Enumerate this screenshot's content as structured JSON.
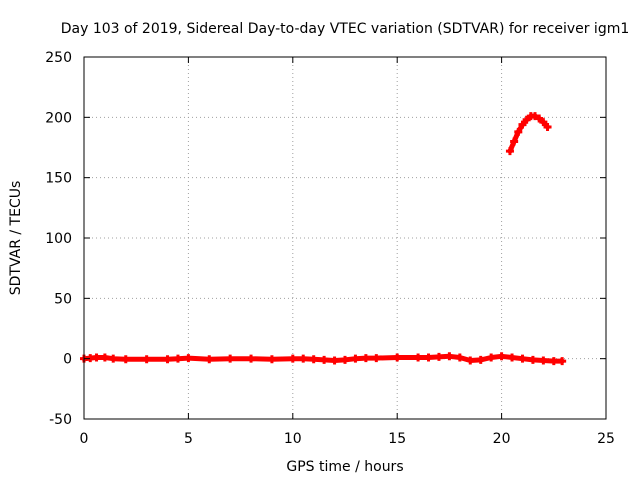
{
  "chart_data": {
    "type": "scatter",
    "title": "Day 103 of 2019, Sidereal Day-to-day VTEC variation (SDTVAR) for receiver igm1",
    "xlabel": "GPS time / hours",
    "ylabel": "SDTVAR / TECUs",
    "xlim": [
      0,
      25
    ],
    "ylim": [
      -50,
      250
    ],
    "xticks": [
      0,
      5,
      10,
      15,
      20,
      25
    ],
    "yticks": [
      -50,
      0,
      50,
      100,
      150,
      200,
      250
    ],
    "grid": true,
    "marker": "plus",
    "series_color": "#ff0000",
    "series": [
      {
        "name": "segment-1",
        "points": [
          [
            0.0,
            0
          ],
          [
            0.3,
            0.5
          ],
          [
            0.6,
            1
          ],
          [
            1.0,
            1
          ],
          [
            1.4,
            0
          ],
          [
            2.0,
            -0.5
          ],
          [
            3.0,
            -0.5
          ],
          [
            4.0,
            -0.5
          ],
          [
            4.5,
            0
          ],
          [
            5.0,
            0.5
          ],
          [
            6.0,
            -0.5
          ],
          [
            7.0,
            0
          ],
          [
            8.0,
            0
          ],
          [
            9.0,
            -0.5
          ],
          [
            10.0,
            0
          ],
          [
            10.5,
            0
          ],
          [
            11.0,
            -0.5
          ],
          [
            11.5,
            -1
          ],
          [
            12.0,
            -1.5
          ],
          [
            12.5,
            -1
          ],
          [
            13.0,
            0
          ],
          [
            13.5,
            0.5
          ],
          [
            14.0,
            0.5
          ],
          [
            15.0,
            1
          ],
          [
            16.0,
            1
          ],
          [
            16.5,
            1
          ],
          [
            17.0,
            1.5
          ],
          [
            17.5,
            2
          ],
          [
            18.0,
            1
          ],
          [
            18.5,
            -1.5
          ],
          [
            19.0,
            -1
          ],
          [
            19.5,
            1
          ],
          [
            20.0,
            2
          ],
          [
            20.5,
            1
          ],
          [
            21.0,
            0
          ],
          [
            21.5,
            -1
          ],
          [
            22.0,
            -1.5
          ],
          [
            22.5,
            -2
          ],
          [
            22.9,
            -2
          ]
        ]
      },
      {
        "name": "segment-2",
        "points": [
          [
            20.4,
            172
          ],
          [
            20.6,
            180
          ],
          [
            20.8,
            188
          ],
          [
            21.0,
            194
          ],
          [
            21.2,
            198
          ],
          [
            21.4,
            201
          ],
          [
            21.6,
            201
          ],
          [
            21.8,
            199
          ],
          [
            22.0,
            196
          ],
          [
            22.2,
            192
          ]
        ]
      }
    ]
  }
}
